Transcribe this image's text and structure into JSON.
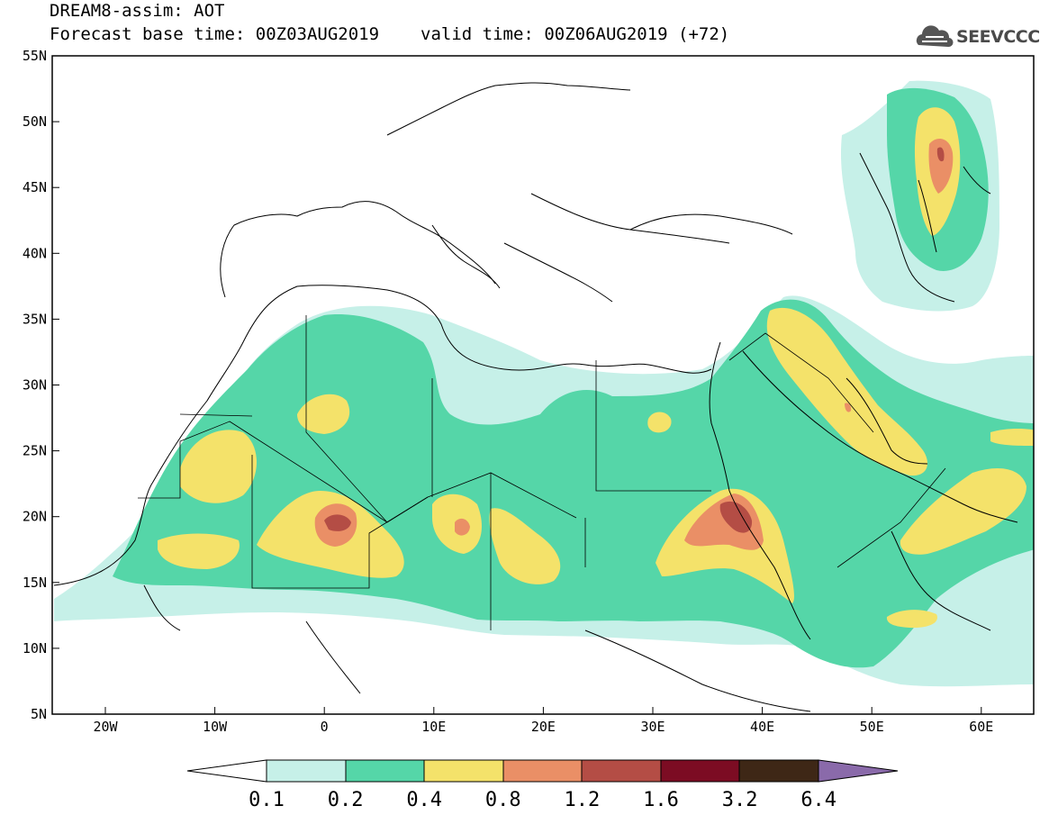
{
  "header": {
    "title": "DREAM8-assim: AOT",
    "base_time_label": "Forecast base time: 00Z03AUG2019",
    "valid_time_label": "valid time: 00Z06AUG2019 (+72)"
  },
  "logo": {
    "text": "SEEVCCC",
    "icon": "cloud-icon"
  },
  "map": {
    "lat_labels": [
      "55N",
      "50N",
      "45N",
      "40N",
      "35N",
      "30N",
      "25N",
      "20N",
      "15N",
      "10N",
      "5N"
    ],
    "lon_labels": [
      "20W",
      "10W",
      "0",
      "10E",
      "20E",
      "30E",
      "40E",
      "50E",
      "60E"
    ]
  },
  "colorbar": {
    "labels": [
      "0.1",
      "0.2",
      "0.4",
      "0.8",
      "1.2",
      "1.6",
      "3.2",
      "6.4"
    ],
    "colors": {
      "c1": "#c6f0e8",
      "c2": "#55d6a8",
      "c3": "#f4e26a",
      "c4": "#ea8f66",
      "c5": "#b44d45",
      "c6": "#7c0c23",
      "c7": "#3e2716",
      "over": "#8a6aaa",
      "under": "#ffffff"
    }
  }
}
